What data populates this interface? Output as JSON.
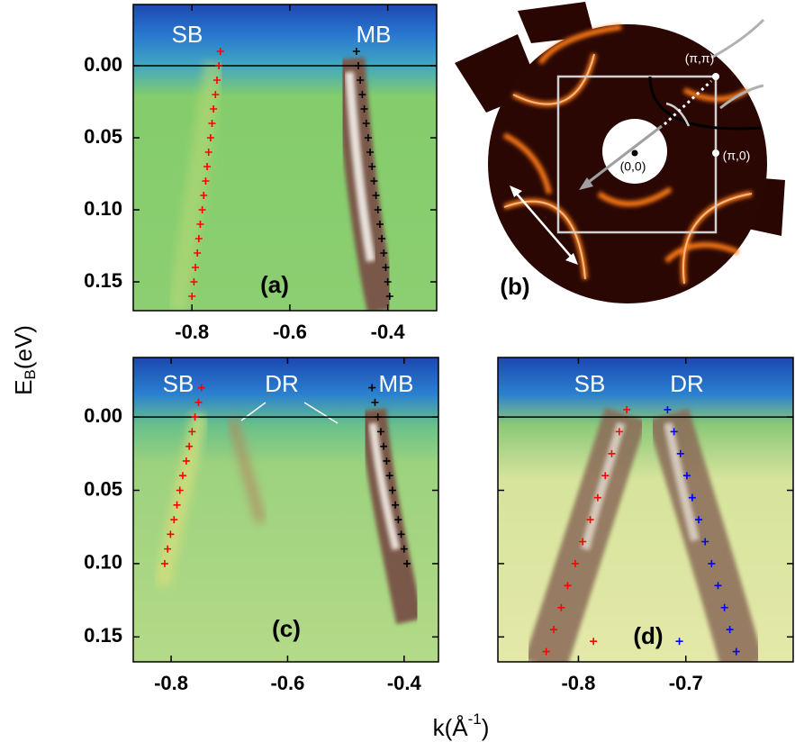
{
  "ylabel": {
    "main": "E",
    "sub": "B",
    "unit": "(eV)"
  },
  "xlabel": {
    "main": "k(Å",
    "sup": "-1",
    "end": ")"
  },
  "chart_data": [
    {
      "type": "scatter",
      "panel_label": "(a)",
      "xlim": [
        -0.92,
        -0.3
      ],
      "xticks": [
        -0.8,
        -0.6,
        -0.4
      ],
      "ylim": [
        0.17,
        -0.0425
      ],
      "yticks": [
        {
          "value": 0,
          "label": "0.00"
        },
        {
          "value": 0.05,
          "label": "0.05"
        },
        {
          "value": 0.1,
          "label": "0.10"
        },
        {
          "value": 0.15,
          "label": "0.15"
        }
      ],
      "series": [
        {
          "name": "SB",
          "color": "#ff0000",
          "x": [
            -0.742,
            -0.745,
            -0.749,
            -0.752,
            -0.756,
            -0.759,
            -0.762,
            -0.766,
            -0.769,
            -0.772,
            -0.776,
            -0.779,
            -0.783,
            -0.786,
            -0.789,
            -0.793,
            -0.796,
            -0.8
          ],
          "values": [
            -0.01,
            0,
            0.01,
            0.02,
            0.03,
            0.04,
            0.05,
            0.06,
            0.07,
            0.08,
            0.09,
            0.1,
            0.11,
            0.12,
            0.13,
            0.14,
            0.15,
            0.16
          ]
        },
        {
          "name": "MB",
          "color": "#000000",
          "x": [
            -0.464,
            -0.46,
            -0.456,
            -0.452,
            -0.448,
            -0.444,
            -0.44,
            -0.436,
            -0.432,
            -0.428,
            -0.424,
            -0.42,
            -0.416,
            -0.412,
            -0.408,
            -0.404,
            -0.4,
            -0.396
          ],
          "values": [
            -0.01,
            0,
            0.01,
            0.02,
            0.03,
            0.04,
            0.05,
            0.06,
            0.07,
            0.08,
            0.09,
            0.1,
            0.11,
            0.12,
            0.13,
            0.14,
            0.15,
            0.16
          ]
        }
      ]
    },
    {
      "type": "map",
      "panel_label": "(b)",
      "labels": [
        "(π,π)",
        "(π,0)",
        "(0,0)"
      ]
    },
    {
      "type": "scatter",
      "panel_label": "(c)",
      "annotations": [
        "DR"
      ],
      "xlim": [
        -0.865,
        -0.341
      ],
      "xticks": [
        -0.8,
        -0.6,
        -0.4
      ],
      "ylim": [
        0.167,
        -0.0406
      ],
      "yticks": [
        {
          "value": 0,
          "label": "0.00"
        },
        {
          "value": 0.05,
          "label": "0.05"
        },
        {
          "value": 0.1,
          "label": "0.10"
        },
        {
          "value": 0.15,
          "label": "0.15"
        }
      ],
      "series": [
        {
          "name": "SB",
          "color": "#ff0000",
          "x": [
            -0.748,
            -0.753,
            -0.759,
            -0.764,
            -0.769,
            -0.774,
            -0.78,
            -0.785,
            -0.79,
            -0.795,
            -0.801,
            -0.806,
            -0.811
          ],
          "values": [
            -0.02,
            -0.01,
            0,
            0.01,
            0.02,
            0.03,
            0.04,
            0.05,
            0.06,
            0.07,
            0.08,
            0.09,
            0.1
          ]
        },
        {
          "name": "MB",
          "color": "#000000",
          "x": [
            -0.455,
            -0.45,
            -0.445,
            -0.44,
            -0.435,
            -0.43,
            -0.425,
            -0.42,
            -0.415,
            -0.41,
            -0.405,
            -0.4,
            -0.395
          ],
          "values": [
            -0.02,
            -0.01,
            0,
            0.01,
            0.02,
            0.03,
            0.04,
            0.05,
            0.06,
            0.07,
            0.08,
            0.09,
            0.1
          ]
        }
      ]
    },
    {
      "type": "scatter",
      "panel_label": "(d)",
      "ytick_labels": false,
      "xlim": [
        -0.875,
        -0.6
      ],
      "xticks": [
        -0.8,
        -0.7
      ],
      "ylim": [
        0.167,
        -0.0406
      ],
      "yticks": [
        0,
        0.05,
        0.1,
        0.15
      ],
      "series": [
        {
          "name": "SB",
          "color": "#ff0000",
          "x": [
            -0.755,
            -0.762,
            -0.769,
            -0.775,
            -0.782,
            -0.789,
            -0.796,
            -0.803,
            -0.81,
            -0.816,
            -0.823,
            -0.83,
            -0.786
          ],
          "values": [
            -0.005,
            0.01,
            0.025,
            0.04,
            0.055,
            0.07,
            0.085,
            0.1,
            0.115,
            0.13,
            0.145,
            0.16,
            0.153
          ]
        },
        {
          "name": "DR",
          "color": "#0000ff",
          "x": [
            -0.717,
            -0.711,
            -0.705,
            -0.699,
            -0.694,
            -0.688,
            -0.682,
            -0.676,
            -0.67,
            -0.664,
            -0.659,
            -0.653,
            -0.706
          ],
          "values": [
            -0.005,
            0.01,
            0.025,
            0.04,
            0.055,
            0.07,
            0.085,
            0.1,
            0.115,
            0.13,
            0.145,
            0.16,
            0.153
          ]
        }
      ]
    }
  ]
}
